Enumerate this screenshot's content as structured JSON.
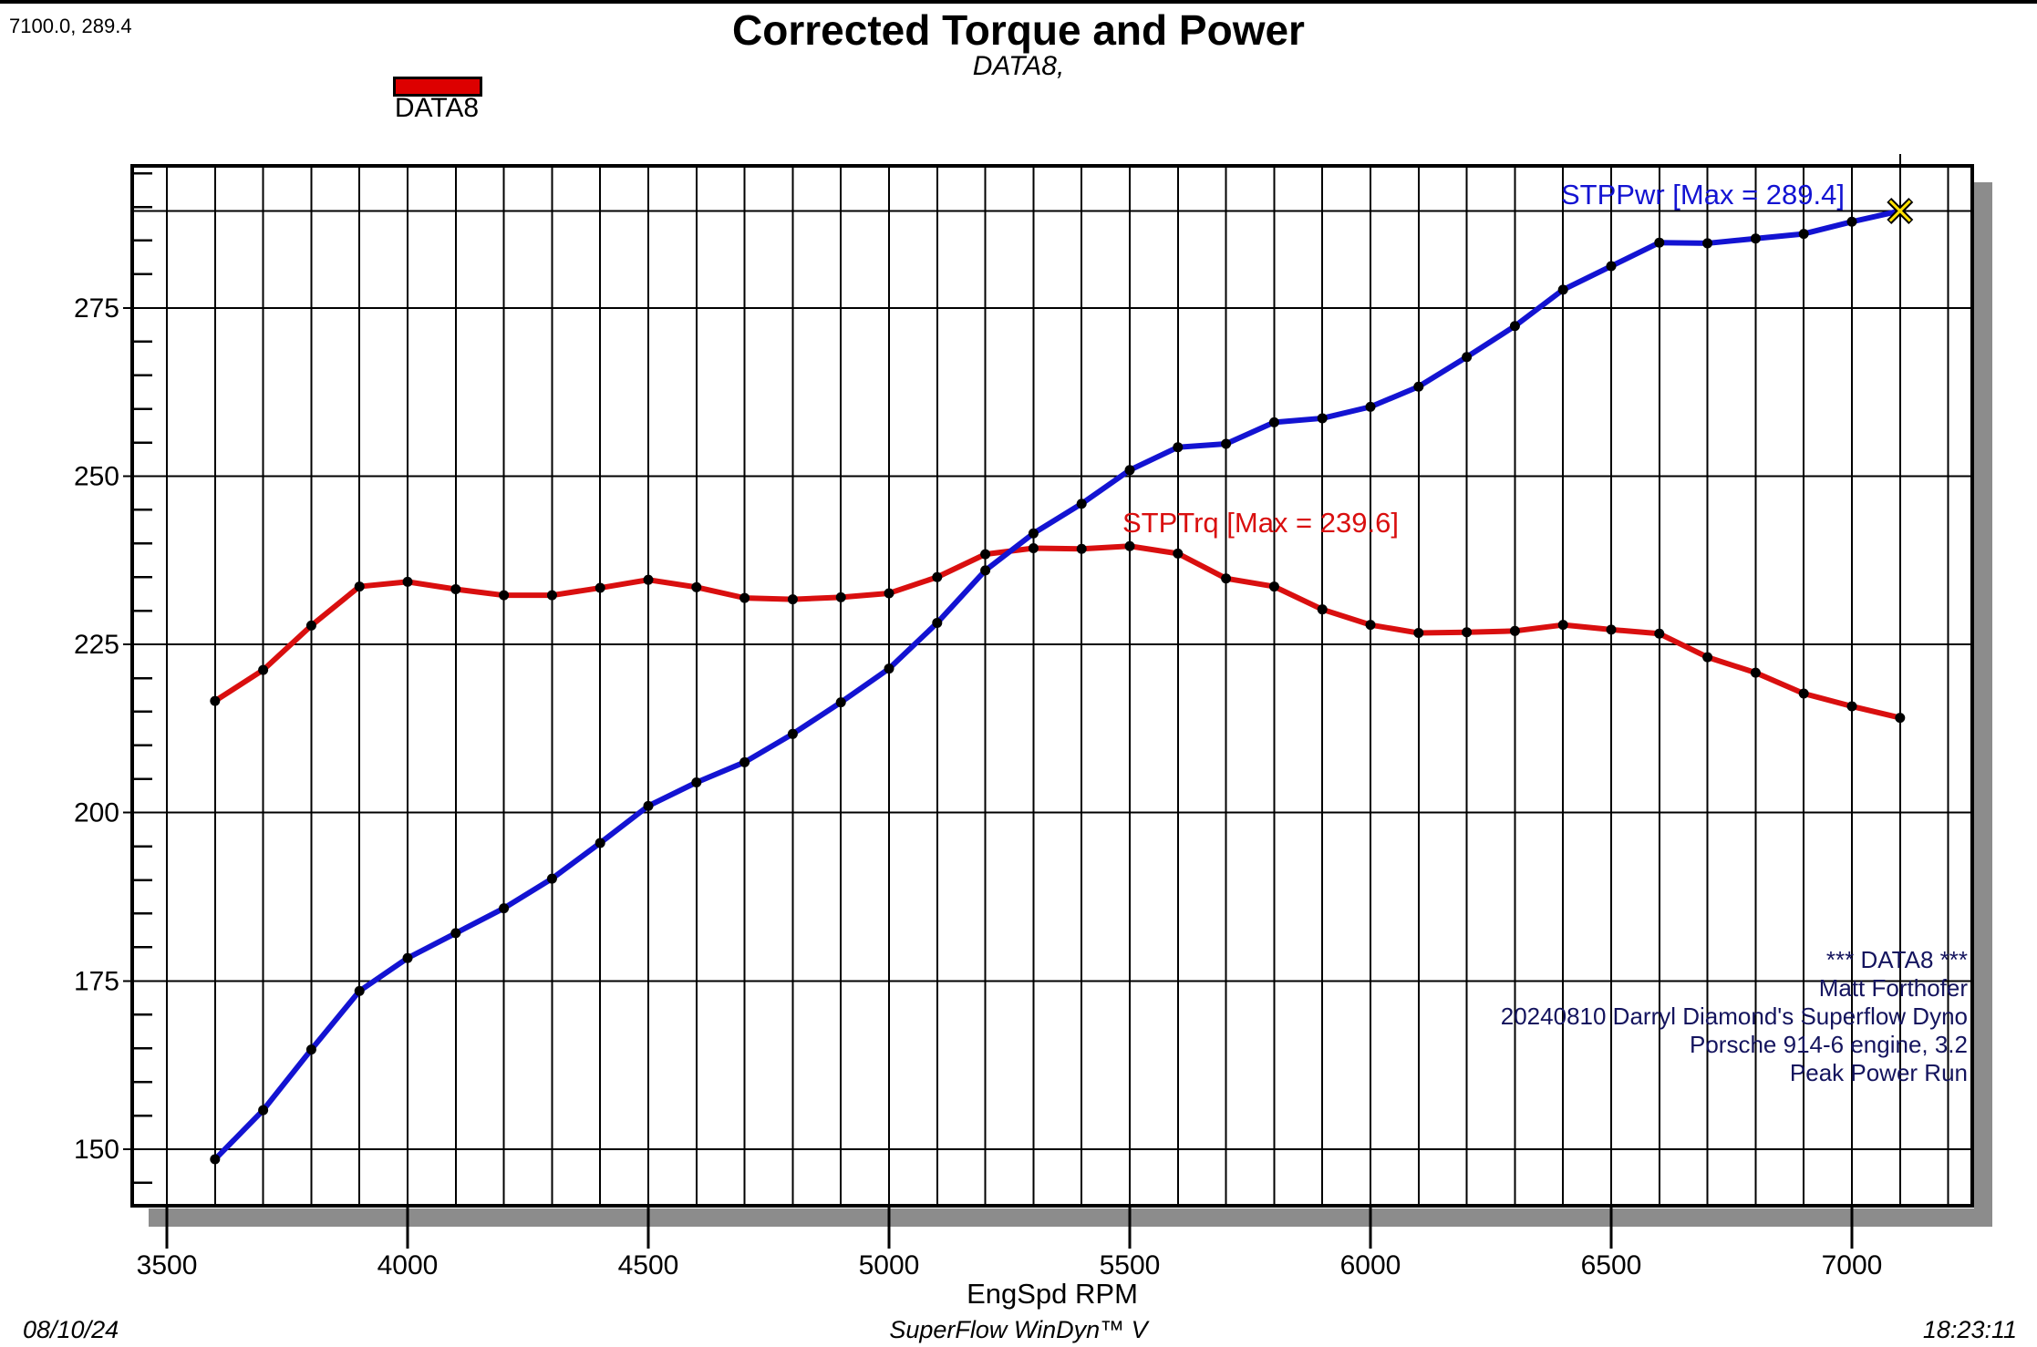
{
  "page": {
    "cursor_readout": "7100.0, 289.4",
    "title": "Corrected Torque and Power",
    "subtitle": "DATA8,"
  },
  "legend": {
    "label": "DATA8",
    "swatch_color": "#dd0000"
  },
  "info_block": {
    "lines": [
      "*** DATA8 ***",
      "Matt Forthofer",
      "20240810 Darryl Diamond's Superflow Dyno",
      "Porsche 914-6 engine, 3.2",
      "Peak Power Run"
    ]
  },
  "footer": {
    "date": "08/10/24",
    "app": "SuperFlow WinDyn™ V",
    "time": "18:23:11"
  },
  "chart_data": {
    "type": "line",
    "title": "Corrected Torque and Power",
    "subtitle": "DATA8,",
    "xlabel": "EngSpd RPM",
    "ylabel": "",
    "grid": "on",
    "x_range": [
      3428,
      7250
    ],
    "y_range": [
      141.6,
      296.1
    ],
    "x_major_ticks": [
      3500,
      4000,
      4500,
      5000,
      5500,
      6000,
      6500,
      7000
    ],
    "x_gridline_step": 100,
    "y_major_ticks": [
      150,
      175,
      200,
      225,
      250,
      275
    ],
    "y_minor_tick_step": 5,
    "marker_color": "#000000",
    "shadow_color": "#8c8c8c",
    "x": [
      3600,
      3700,
      3800,
      3900,
      4000,
      4100,
      4200,
      4300,
      4400,
      4500,
      4600,
      4700,
      4800,
      4900,
      5000,
      5100,
      5200,
      5300,
      5400,
      5500,
      5600,
      5700,
      5800,
      5900,
      6000,
      6100,
      6200,
      6300,
      6400,
      6500,
      6600,
      6700,
      6800,
      6900,
      7000,
      7100
    ],
    "series": [
      {
        "name": "STPTrq",
        "annotation": "STPTrq [Max = 239.6]",
        "max": 239.6,
        "color": "#d90f0f",
        "values": [
          216.6,
          221.2,
          227.8,
          233.6,
          234.3,
          233.2,
          232.3,
          232.3,
          233.4,
          234.6,
          233.5,
          231.9,
          231.7,
          232.0,
          232.6,
          235.0,
          238.4,
          239.3,
          239.2,
          239.6,
          238.5,
          234.8,
          233.6,
          230.2,
          227.9,
          226.7,
          226.8,
          227.0,
          227.9,
          227.2,
          226.6,
          223.1,
          220.8,
          217.7,
          215.8,
          214.1
        ]
      },
      {
        "name": "STPPwr",
        "annotation": "STPPwr [Max = 289.4]",
        "max": 289.4,
        "color": "#1313d2",
        "values": [
          148.5,
          155.8,
          164.8,
          173.5,
          178.4,
          182.1,
          185.8,
          190.2,
          195.5,
          201.0,
          204.5,
          207.5,
          211.7,
          216.4,
          221.4,
          228.2,
          236.0,
          241.5,
          245.9,
          250.9,
          254.3,
          254.8,
          258.0,
          258.6,
          260.3,
          263.3,
          267.7,
          272.3,
          277.7,
          281.2,
          284.7,
          284.6,
          285.3,
          286.0,
          287.8,
          289.4
        ]
      }
    ],
    "cursor": {
      "rpm": 7100.0,
      "value": 289.4,
      "readout": "7100.0, 289.4"
    }
  }
}
